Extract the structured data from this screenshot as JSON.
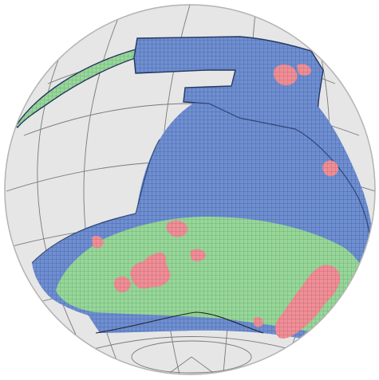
{
  "colors": {
    "background": "#ffffff",
    "sphere_fill": "#e6e6e6",
    "sphere_edge": "#aaaaaa",
    "graticule": "#555555",
    "region_blue": "#6f8fcf",
    "region_blue_mesh": "#2f4f9f",
    "region_green": "#98d69a",
    "region_green_mesh": "#4f9a55",
    "region_red": "#ef8f97",
    "region_red_mesh": "#b0505a",
    "outline": "#24365f"
  },
  "regions": [
    {
      "label": "blue",
      "color_key": "region_blue"
    },
    {
      "label": "green",
      "color_key": "region_green"
    },
    {
      "label": "red",
      "color_key": "region_red"
    }
  ]
}
